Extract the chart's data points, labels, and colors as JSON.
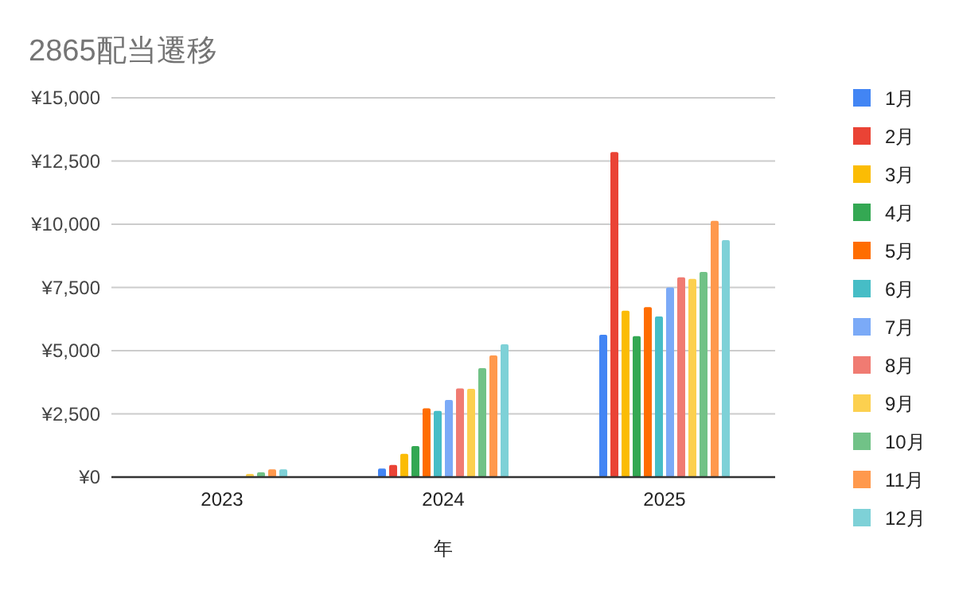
{
  "chart_data": {
    "type": "bar",
    "title": "2865配当遷移",
    "xlabel": "年",
    "categories": [
      "2023",
      "2024",
      "2025"
    ],
    "ylim": [
      0,
      15000
    ],
    "yticks": [
      {
        "value": 0,
        "label": "¥0"
      },
      {
        "value": 2500,
        "label": "¥2,500"
      },
      {
        "value": 5000,
        "label": "¥5,000"
      },
      {
        "value": 7500,
        "label": "¥7,500"
      },
      {
        "value": 10000,
        "label": "¥10,000"
      },
      {
        "value": 12500,
        "label": "¥12,500"
      },
      {
        "value": 15000,
        "label": "¥15,000"
      }
    ],
    "grid": "y",
    "legend": "right",
    "series": [
      {
        "name": "1月",
        "color": "#4285f4",
        "values": [
          null,
          335,
          5630
        ]
      },
      {
        "name": "2月",
        "color": "#ea4335",
        "values": [
          null,
          480,
          12850
        ]
      },
      {
        "name": "3月",
        "color": "#fbbc04",
        "values": [
          null,
          920,
          6580
        ]
      },
      {
        "name": "4月",
        "color": "#34a853",
        "values": [
          null,
          1230,
          5570
        ]
      },
      {
        "name": "5月",
        "color": "#ff6d01",
        "values": [
          null,
          2720,
          6720
        ]
      },
      {
        "name": "6月",
        "color": "#46bdc6",
        "values": [
          null,
          2620,
          6350
        ]
      },
      {
        "name": "7月",
        "color": "#7baaf7",
        "values": [
          null,
          3050,
          7500
        ]
      },
      {
        "name": "8月",
        "color": "#f07b72",
        "values": [
          null,
          3510,
          7900
        ]
      },
      {
        "name": "9月",
        "color": "#fcd04f",
        "values": [
          125,
          3490,
          7840
        ]
      },
      {
        "name": "10月",
        "color": "#71c287",
        "values": [
          190,
          4310,
          8110
        ]
      },
      {
        "name": "11月",
        "color": "#ff994d",
        "values": [
          310,
          4810,
          10130
        ]
      },
      {
        "name": "12月",
        "color": "#7ed1d7",
        "values": [
          310,
          5250,
          9370
        ]
      }
    ]
  }
}
